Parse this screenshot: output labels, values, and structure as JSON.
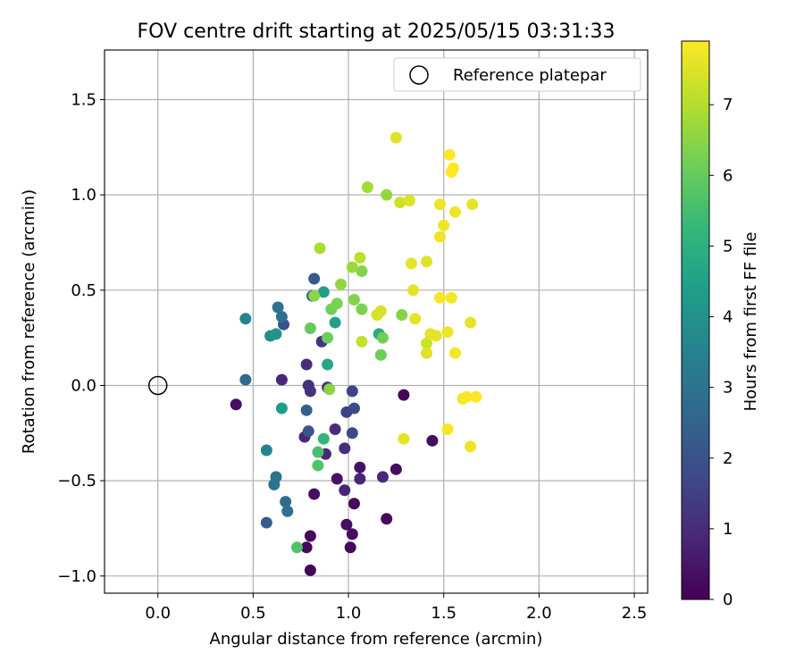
{
  "chart_data": {
    "type": "scatter",
    "title": "FOV centre drift starting at 2025/05/15 03:31:33",
    "xlabel": "Angular distance from reference (arcmin)",
    "ylabel": "Rotation from reference (arcmin)",
    "xlim": [
      -0.28,
      2.57
    ],
    "ylim": [
      -1.09,
      1.76
    ],
    "xticks": [
      0.0,
      0.5,
      1.0,
      1.5,
      2.0,
      2.5
    ],
    "xtick_labels": [
      "0.0",
      "0.5",
      "1.0",
      "1.5",
      "2.0",
      "2.5"
    ],
    "yticks": [
      -1.0,
      -0.5,
      0.0,
      0.5,
      1.0,
      1.5
    ],
    "ytick_labels": [
      "−1.0",
      "−0.5",
      "0.0",
      "0.5",
      "1.0",
      "1.5"
    ],
    "grid": true,
    "legend": {
      "position": "top-right",
      "entries": [
        "Reference platepar"
      ]
    },
    "reference_point": {
      "x": 0.0,
      "y": 0.0
    },
    "colorbar": {
      "label": "Hours from first FF file",
      "colormap": "viridis",
      "range": [
        0,
        7.9
      ],
      "ticks": [
        0,
        1,
        2,
        3,
        4,
        5,
        6,
        7
      ],
      "tick_labels": [
        "0",
        "1",
        "2",
        "3",
        "4",
        "5",
        "6",
        "7"
      ]
    },
    "points": [
      {
        "x": 0.41,
        "y": -0.1,
        "c": 0.3
      },
      {
        "x": 0.78,
        "y": -0.85,
        "c": 0.2
      },
      {
        "x": 0.8,
        "y": -0.79,
        "c": 0.2
      },
      {
        "x": 0.8,
        "y": -0.97,
        "c": 0.1
      },
      {
        "x": 0.82,
        "y": -0.57,
        "c": 0.3
      },
      {
        "x": 0.94,
        "y": -0.49,
        "c": 0.4
      },
      {
        "x": 0.99,
        "y": -0.73,
        "c": 0.3
      },
      {
        "x": 1.01,
        "y": -0.85,
        "c": 0.2
      },
      {
        "x": 1.02,
        "y": -0.78,
        "c": 0.3
      },
      {
        "x": 1.03,
        "y": -0.62,
        "c": 0.2
      },
      {
        "x": 1.06,
        "y": -0.43,
        "c": 0.4
      },
      {
        "x": 1.2,
        "y": -0.7,
        "c": 0.2
      },
      {
        "x": 1.25,
        "y": -0.44,
        "c": 0.3
      },
      {
        "x": 1.29,
        "y": -0.05,
        "c": 0.1
      },
      {
        "x": 1.44,
        "y": -0.29,
        "c": 0.3
      },
      {
        "x": 1.06,
        "y": -0.49,
        "c": 0.8
      },
      {
        "x": 0.98,
        "y": -0.55,
        "c": 0.8
      },
      {
        "x": 1.18,
        "y": -0.48,
        "c": 0.9
      },
      {
        "x": 0.77,
        "y": -0.27,
        "c": 0.9
      },
      {
        "x": 0.88,
        "y": -0.36,
        "c": 0.9
      },
      {
        "x": 0.93,
        "y": -0.23,
        "c": 1.0
      },
      {
        "x": 0.98,
        "y": -0.33,
        "c": 1.0
      },
      {
        "x": 0.65,
        "y": 0.03,
        "c": 0.9
      },
      {
        "x": 0.78,
        "y": 0.11,
        "c": 1.0
      },
      {
        "x": 0.79,
        "y": 0.0,
        "c": 1.1
      },
      {
        "x": 0.8,
        "y": -0.03,
        "c": 1.2
      },
      {
        "x": 0.86,
        "y": 0.23,
        "c": 1.2
      },
      {
        "x": 0.89,
        "y": -0.01,
        "c": 1.3
      },
      {
        "x": 0.99,
        "y": -0.14,
        "c": 1.5
      },
      {
        "x": 1.02,
        "y": -0.03,
        "c": 1.6
      },
      {
        "x": 1.02,
        "y": -0.25,
        "c": 1.7
      },
      {
        "x": 1.03,
        "y": -0.12,
        "c": 1.8
      },
      {
        "x": 0.79,
        "y": -0.24,
        "c": 2.1
      },
      {
        "x": 0.78,
        "y": -0.13,
        "c": 2.4
      },
      {
        "x": 0.66,
        "y": 0.32,
        "c": 2.0
      },
      {
        "x": 0.82,
        "y": 0.56,
        "c": 2.2
      },
      {
        "x": 0.81,
        "y": 0.47,
        "c": 2.3
      },
      {
        "x": 0.46,
        "y": 0.03,
        "c": 2.7
      },
      {
        "x": 0.65,
        "y": 0.36,
        "c": 2.9
      },
      {
        "x": 0.63,
        "y": 0.41,
        "c": 3.0
      },
      {
        "x": 0.57,
        "y": -0.72,
        "c": 2.3
      },
      {
        "x": 0.67,
        "y": -0.61,
        "c": 2.8
      },
      {
        "x": 0.68,
        "y": -0.66,
        "c": 2.9
      },
      {
        "x": 0.62,
        "y": -0.48,
        "c": 3.0
      },
      {
        "x": 0.61,
        "y": -0.52,
        "c": 3.0
      },
      {
        "x": 0.57,
        "y": -0.34,
        "c": 3.5
      },
      {
        "x": 0.46,
        "y": 0.35,
        "c": 3.6
      },
      {
        "x": 0.59,
        "y": 0.26,
        "c": 3.9
      },
      {
        "x": 0.62,
        "y": 0.27,
        "c": 4.1
      },
      {
        "x": 0.65,
        "y": -0.12,
        "c": 4.3
      },
      {
        "x": 0.87,
        "y": 0.49,
        "c": 4.4
      },
      {
        "x": 0.93,
        "y": 0.33,
        "c": 4.5
      },
      {
        "x": 0.89,
        "y": 0.11,
        "c": 4.7
      },
      {
        "x": 1.16,
        "y": 0.27,
        "c": 4.8
      },
      {
        "x": 0.87,
        "y": -0.28,
        "c": 5.2
      },
      {
        "x": 0.84,
        "y": -0.35,
        "c": 5.6
      },
      {
        "x": 0.84,
        "y": -0.42,
        "c": 5.7
      },
      {
        "x": 0.73,
        "y": -0.85,
        "c": 5.7
      },
      {
        "x": 0.8,
        "y": 0.3,
        "c": 6.0
      },
      {
        "x": 0.89,
        "y": 0.25,
        "c": 6.1
      },
      {
        "x": 0.91,
        "y": 0.4,
        "c": 6.2
      },
      {
        "x": 0.94,
        "y": 0.43,
        "c": 6.3
      },
      {
        "x": 1.07,
        "y": 0.4,
        "c": 6.3
      },
      {
        "x": 1.07,
        "y": 0.6,
        "c": 6.4
      },
      {
        "x": 1.03,
        "y": 0.45,
        "c": 6.4
      },
      {
        "x": 0.9,
        "y": -0.02,
        "c": 6.5
      },
      {
        "x": 1.17,
        "y": 0.16,
        "c": 6.1
      },
      {
        "x": 1.18,
        "y": 0.25,
        "c": 6.2
      },
      {
        "x": 1.28,
        "y": 0.37,
        "c": 6.4
      },
      {
        "x": 0.82,
        "y": 0.47,
        "c": 6.5
      },
      {
        "x": 0.96,
        "y": 0.53,
        "c": 6.6
      },
      {
        "x": 1.02,
        "y": 0.62,
        "c": 6.7
      },
      {
        "x": 1.2,
        "y": 1.0,
        "c": 6.6
      },
      {
        "x": 1.1,
        "y": 1.04,
        "c": 6.8
      },
      {
        "x": 0.85,
        "y": 0.72,
        "c": 6.9
      },
      {
        "x": 1.07,
        "y": 0.23,
        "c": 7.2
      },
      {
        "x": 1.06,
        "y": 0.67,
        "c": 7.1
      },
      {
        "x": 1.15,
        "y": 0.37,
        "c": 7.4
      },
      {
        "x": 1.17,
        "y": 0.39,
        "c": 7.4
      },
      {
        "x": 1.27,
        "y": 0.96,
        "c": 7.3
      },
      {
        "x": 1.32,
        "y": 0.97,
        "c": 7.5
      },
      {
        "x": 1.25,
        "y": 1.3,
        "c": 7.5
      },
      {
        "x": 1.33,
        "y": 0.64,
        "c": 7.6
      },
      {
        "x": 1.34,
        "y": 0.5,
        "c": 7.6
      },
      {
        "x": 1.35,
        "y": 0.35,
        "c": 7.6
      },
      {
        "x": 1.41,
        "y": 0.22,
        "c": 7.3
      },
      {
        "x": 1.41,
        "y": 0.17,
        "c": 7.5
      },
      {
        "x": 1.41,
        "y": 0.65,
        "c": 7.5
      },
      {
        "x": 1.43,
        "y": 0.27,
        "c": 7.6
      },
      {
        "x": 1.46,
        "y": 0.26,
        "c": 7.6
      },
      {
        "x": 1.48,
        "y": 0.95,
        "c": 7.7
      },
      {
        "x": 1.48,
        "y": 0.78,
        "c": 7.7
      },
      {
        "x": 1.48,
        "y": 0.46,
        "c": 7.8
      },
      {
        "x": 1.5,
        "y": 0.84,
        "c": 7.7
      },
      {
        "x": 1.52,
        "y": 0.28,
        "c": 7.7
      },
      {
        "x": 1.53,
        "y": 1.21,
        "c": 7.9
      },
      {
        "x": 1.54,
        "y": 1.12,
        "c": 7.9
      },
      {
        "x": 1.55,
        "y": 1.14,
        "c": 7.9
      },
      {
        "x": 1.54,
        "y": 0.46,
        "c": 7.8
      },
      {
        "x": 1.56,
        "y": 0.91,
        "c": 7.7
      },
      {
        "x": 1.56,
        "y": 0.17,
        "c": 7.8
      },
      {
        "x": 1.6,
        "y": -0.07,
        "c": 7.8
      },
      {
        "x": 1.62,
        "y": -0.06,
        "c": 7.9
      },
      {
        "x": 1.67,
        "y": -0.06,
        "c": 7.9
      },
      {
        "x": 1.65,
        "y": 0.95,
        "c": 7.6
      },
      {
        "x": 1.64,
        "y": 0.33,
        "c": 7.6
      },
      {
        "x": 1.64,
        "y": -0.32,
        "c": 7.7
      },
      {
        "x": 1.52,
        "y": -0.23,
        "c": 7.8
      },
      {
        "x": 1.29,
        "y": -0.28,
        "c": 7.6
      }
    ]
  }
}
